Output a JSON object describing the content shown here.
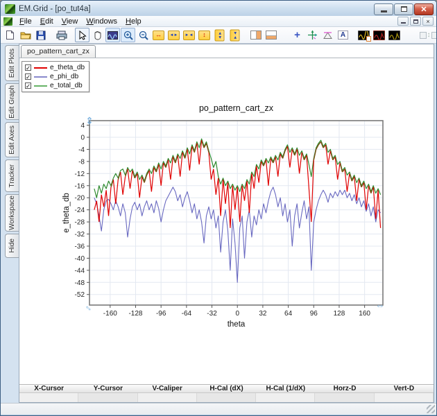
{
  "window": {
    "title": "EM.Grid - [po_tut4a]"
  },
  "menu": {
    "items": [
      "File",
      "Edit",
      "View",
      "Windows",
      "Help"
    ]
  },
  "toolbar": {
    "layout_label": "Layout",
    "annotation_label": "A",
    "buttons": [
      "new-document",
      "open-file",
      "save",
      "print",
      "select-arrow",
      "pan-hand",
      "zoom-window",
      "zoom-in",
      "zoom-out",
      "expand-x",
      "grow-x",
      "shrink-x",
      "expand-y",
      "grow-y",
      "shrink-y",
      "split-vertical",
      "split-horizontal",
      "cross-cursor",
      "tracker-axes",
      "caliper",
      "text-annotation",
      "new-graph",
      "graph-red",
      "graph-yellow",
      "tile-vertical",
      "tile-horizontal",
      "layout"
    ]
  },
  "sidebar": {
    "tabs": [
      "Edit Plots",
      "Edit Graph",
      "Edit Axes",
      "Tracker",
      "Workspace",
      "Hide"
    ]
  },
  "document_tabs": [
    "po_pattern_cart_zx"
  ],
  "legend": {
    "items": [
      {
        "label": "e_theta_db",
        "color": "#e00000",
        "checked": true
      },
      {
        "label": "e_phi_db",
        "color": "#8888cc",
        "checked": true
      },
      {
        "label": "e_total_db",
        "color": "#66b366",
        "checked": true
      }
    ]
  },
  "readout": {
    "columns": [
      "X-Cursor",
      "Y-Cursor",
      "V-Caliper",
      "H-Cal (dX)",
      "H-Cal (1/dX)",
      "Horz-D",
      "Vert-D"
    ],
    "values": [
      "",
      "",
      "",
      "",
      "",
      "",
      ""
    ]
  },
  "chart_data": {
    "type": "line",
    "title": "po_pattern_cart_zx",
    "xlabel": "theta",
    "ylabel": "e_theta_db",
    "xlim": [
      -186,
      183
    ],
    "ylim": [
      -55.5,
      5.5
    ],
    "x_ticks": [
      -160,
      -128,
      -96,
      -64,
      -32,
      0,
      32,
      64,
      96,
      128,
      160
    ],
    "y_ticks": [
      4,
      0,
      -4,
      -8,
      -12,
      -16,
      -20,
      -24,
      -28,
      -32,
      -36,
      -40,
      -44,
      -48,
      -52
    ],
    "grid": true,
    "legend_position": "floating-top-left",
    "overlap_color": "#7b4f15",
    "grid_color": "#e3e8f1",
    "x": {
      "start": -180,
      "step": 3,
      "count": 121
    },
    "series": [
      {
        "name": "e_theta_db",
        "color": "#e00000",
        "values": [
          -24,
          -21,
          -28,
          -19,
          -23,
          -17.5,
          -26,
          -16.5,
          -14,
          -22,
          -14,
          -11.5,
          -19,
          -13,
          -10.5,
          -17,
          -11,
          -13.5,
          -12,
          -20,
          -13,
          -15,
          -12.5,
          -11,
          -18,
          -10,
          -11.5,
          -9,
          -16,
          -8.5,
          -10,
          -7.5,
          -14,
          -6.5,
          -8.5,
          -6,
          -13,
          -5,
          -7,
          -4,
          -11,
          -3,
          -5,
          -2,
          -9,
          -1,
          -3.5,
          -2,
          -5,
          -14,
          -10.5,
          -19,
          -13.5,
          -26,
          -14,
          -22,
          -15,
          -30,
          -16,
          -24,
          -16.5,
          -28,
          -16,
          -21,
          -14.5,
          -25,
          -12,
          -17,
          -9.5,
          -15,
          -8,
          -9.5,
          -7.5,
          -16,
          -7,
          -8.5,
          -6.5,
          -13,
          -5.5,
          -7,
          -4.5,
          -3,
          -10,
          -4,
          -6,
          -4,
          -12,
          -5,
          -7.5,
          -6,
          -17,
          -28,
          -7.5,
          -4,
          -2.5,
          -1.5,
          -3.5,
          -2.5,
          -9,
          -4.5,
          -7.5,
          -6.5,
          -14,
          -8.5,
          -11.5,
          -10.5,
          -18,
          -12,
          -14.5,
          -13,
          -21,
          -14,
          -16.5,
          -15,
          -24,
          -16,
          -18.5,
          -16.5,
          -27,
          -17.5,
          -30
        ]
      },
      {
        "name": "e_phi_db",
        "color": "#6868c0",
        "values": [
          -20,
          -22,
          -26,
          -31,
          -24,
          -21,
          -20.5,
          -22,
          -24,
          -21,
          -23,
          -26,
          -22,
          -25,
          -33,
          -27,
          -23,
          -21.5,
          -24,
          -22,
          -26,
          -23,
          -21,
          -24,
          -22,
          -25,
          -21,
          -23.5,
          -28,
          -24,
          -21,
          -19.5,
          -18,
          -16.5,
          -18,
          -21,
          -19,
          -23,
          -20,
          -18,
          -21,
          -25,
          -22,
          -27,
          -24,
          -28,
          -35,
          -26,
          -23,
          -27,
          -24,
          -30,
          -26,
          -38,
          -28,
          -24,
          -31,
          -44,
          -27,
          -35,
          -48,
          -30,
          -26,
          -40,
          -28,
          -24,
          -33,
          -26,
          -29,
          -24,
          -27,
          -22,
          -25,
          -21,
          -18,
          -16.5,
          -19,
          -23,
          -20,
          -26,
          -22,
          -28,
          -24,
          -36,
          -26,
          -22,
          -30,
          -25,
          -21,
          -27,
          -23,
          -44,
          -28,
          -24,
          -21,
          -19,
          -17.5,
          -19,
          -21.5,
          -18.5,
          -20,
          -18,
          -19.5,
          -17.5,
          -19,
          -17.5,
          -20,
          -18.5,
          -21,
          -19,
          -22,
          -20,
          -23,
          -21,
          -24.5,
          -22,
          -26,
          -23,
          -28,
          -24,
          -25
        ]
      },
      {
        "name": "e_total_db",
        "color": "#2e8b2e",
        "values": [
          -17,
          -20,
          -16,
          -18.5,
          -15.5,
          -17,
          -14.5,
          -16,
          -13.5,
          -12,
          -13.5,
          -11,
          -10.5,
          -12.5,
          -10,
          -11.5,
          -10.5,
          -13,
          -11.5,
          -14,
          -12.5,
          -14.5,
          -12,
          -10.5,
          -12,
          -9.5,
          -11,
          -8.5,
          -10.5,
          -8,
          -9.5,
          -7,
          -8.5,
          -6,
          -8,
          -5.5,
          -7,
          -4.5,
          -6.5,
          -3.5,
          -5.5,
          -2.5,
          -4.5,
          -1.5,
          -3.5,
          -0.5,
          -3,
          -1.5,
          -4.5,
          -7,
          -10,
          -8,
          -13,
          -15.5,
          -13.5,
          -16,
          -14.5,
          -17,
          -15.5,
          -17.5,
          -16,
          -18,
          -15.5,
          -17,
          -14,
          -15.5,
          -11.5,
          -13,
          -9,
          -10.5,
          -7.5,
          -9,
          -7,
          -8.5,
          -6.5,
          -8,
          -6,
          -7.5,
          -5,
          -6.5,
          -4,
          -2.5,
          -5,
          -3.5,
          -5.5,
          -3.5,
          -6,
          -4.5,
          -7,
          -5.5,
          -9,
          -13,
          -7,
          -3.5,
          -2,
          -1,
          -3,
          -2,
          -5,
          -4,
          -7,
          -6,
          -9,
          -8,
          -11,
          -10,
          -12.5,
          -11.5,
          -14,
          -12.5,
          -15,
          -13.5,
          -16,
          -14.5,
          -17,
          -15.5,
          -18,
          -16,
          -18.5,
          -17,
          -19
        ]
      }
    ]
  }
}
